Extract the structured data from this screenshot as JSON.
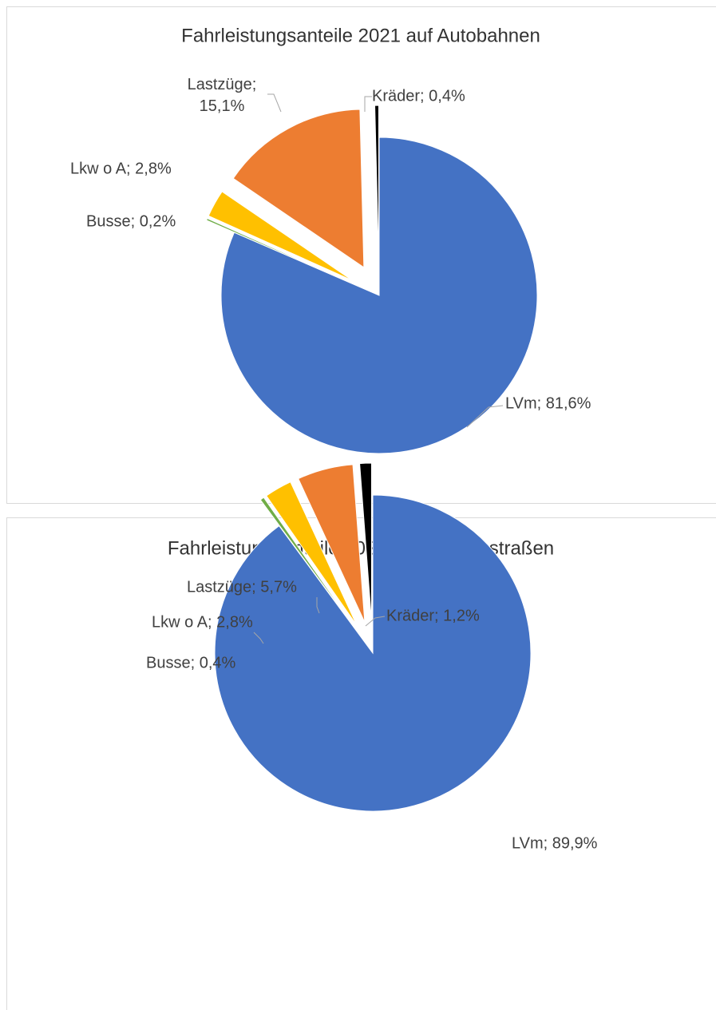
{
  "chart_data": [
    {
      "type": "pie",
      "title": "Fahrleistungsanteile 2021 auf Autobahnen",
      "categories": [
        "LVm",
        "Busse",
        "Lkw o A",
        "Lastzüge",
        "Kräder"
      ],
      "values": [
        81.6,
        0.2,
        2.8,
        15.1,
        0.4
      ],
      "value_labels": [
        "LVm; 81,6%",
        "Busse; 0,2%",
        "Lkw o A; 2,8%",
        "Lastzüge; 15,1%",
        "Kräder; 0,4%"
      ],
      "colors": [
        "#4472c4",
        "#70ad47",
        "#ffc000",
        "#ed7d31",
        "#000000"
      ]
    },
    {
      "type": "pie",
      "title": "Fahrleistungsanteile 2021 auf Bundesstraßen",
      "categories": [
        "LVm",
        "Busse",
        "Lkw o A",
        "Lastzüge",
        "Kräder"
      ],
      "values": [
        89.9,
        0.4,
        2.8,
        5.7,
        1.2
      ],
      "value_labels": [
        "LVm; 89,9%",
        "Busse; 0,4%",
        "Lkw o A; 2,8%",
        "Lastzüge; 5,7%",
        "Kräder; 1,2%"
      ],
      "colors": [
        "#4472c4",
        "#70ad47",
        "#ffc000",
        "#ed7d31",
        "#000000"
      ]
    }
  ]
}
